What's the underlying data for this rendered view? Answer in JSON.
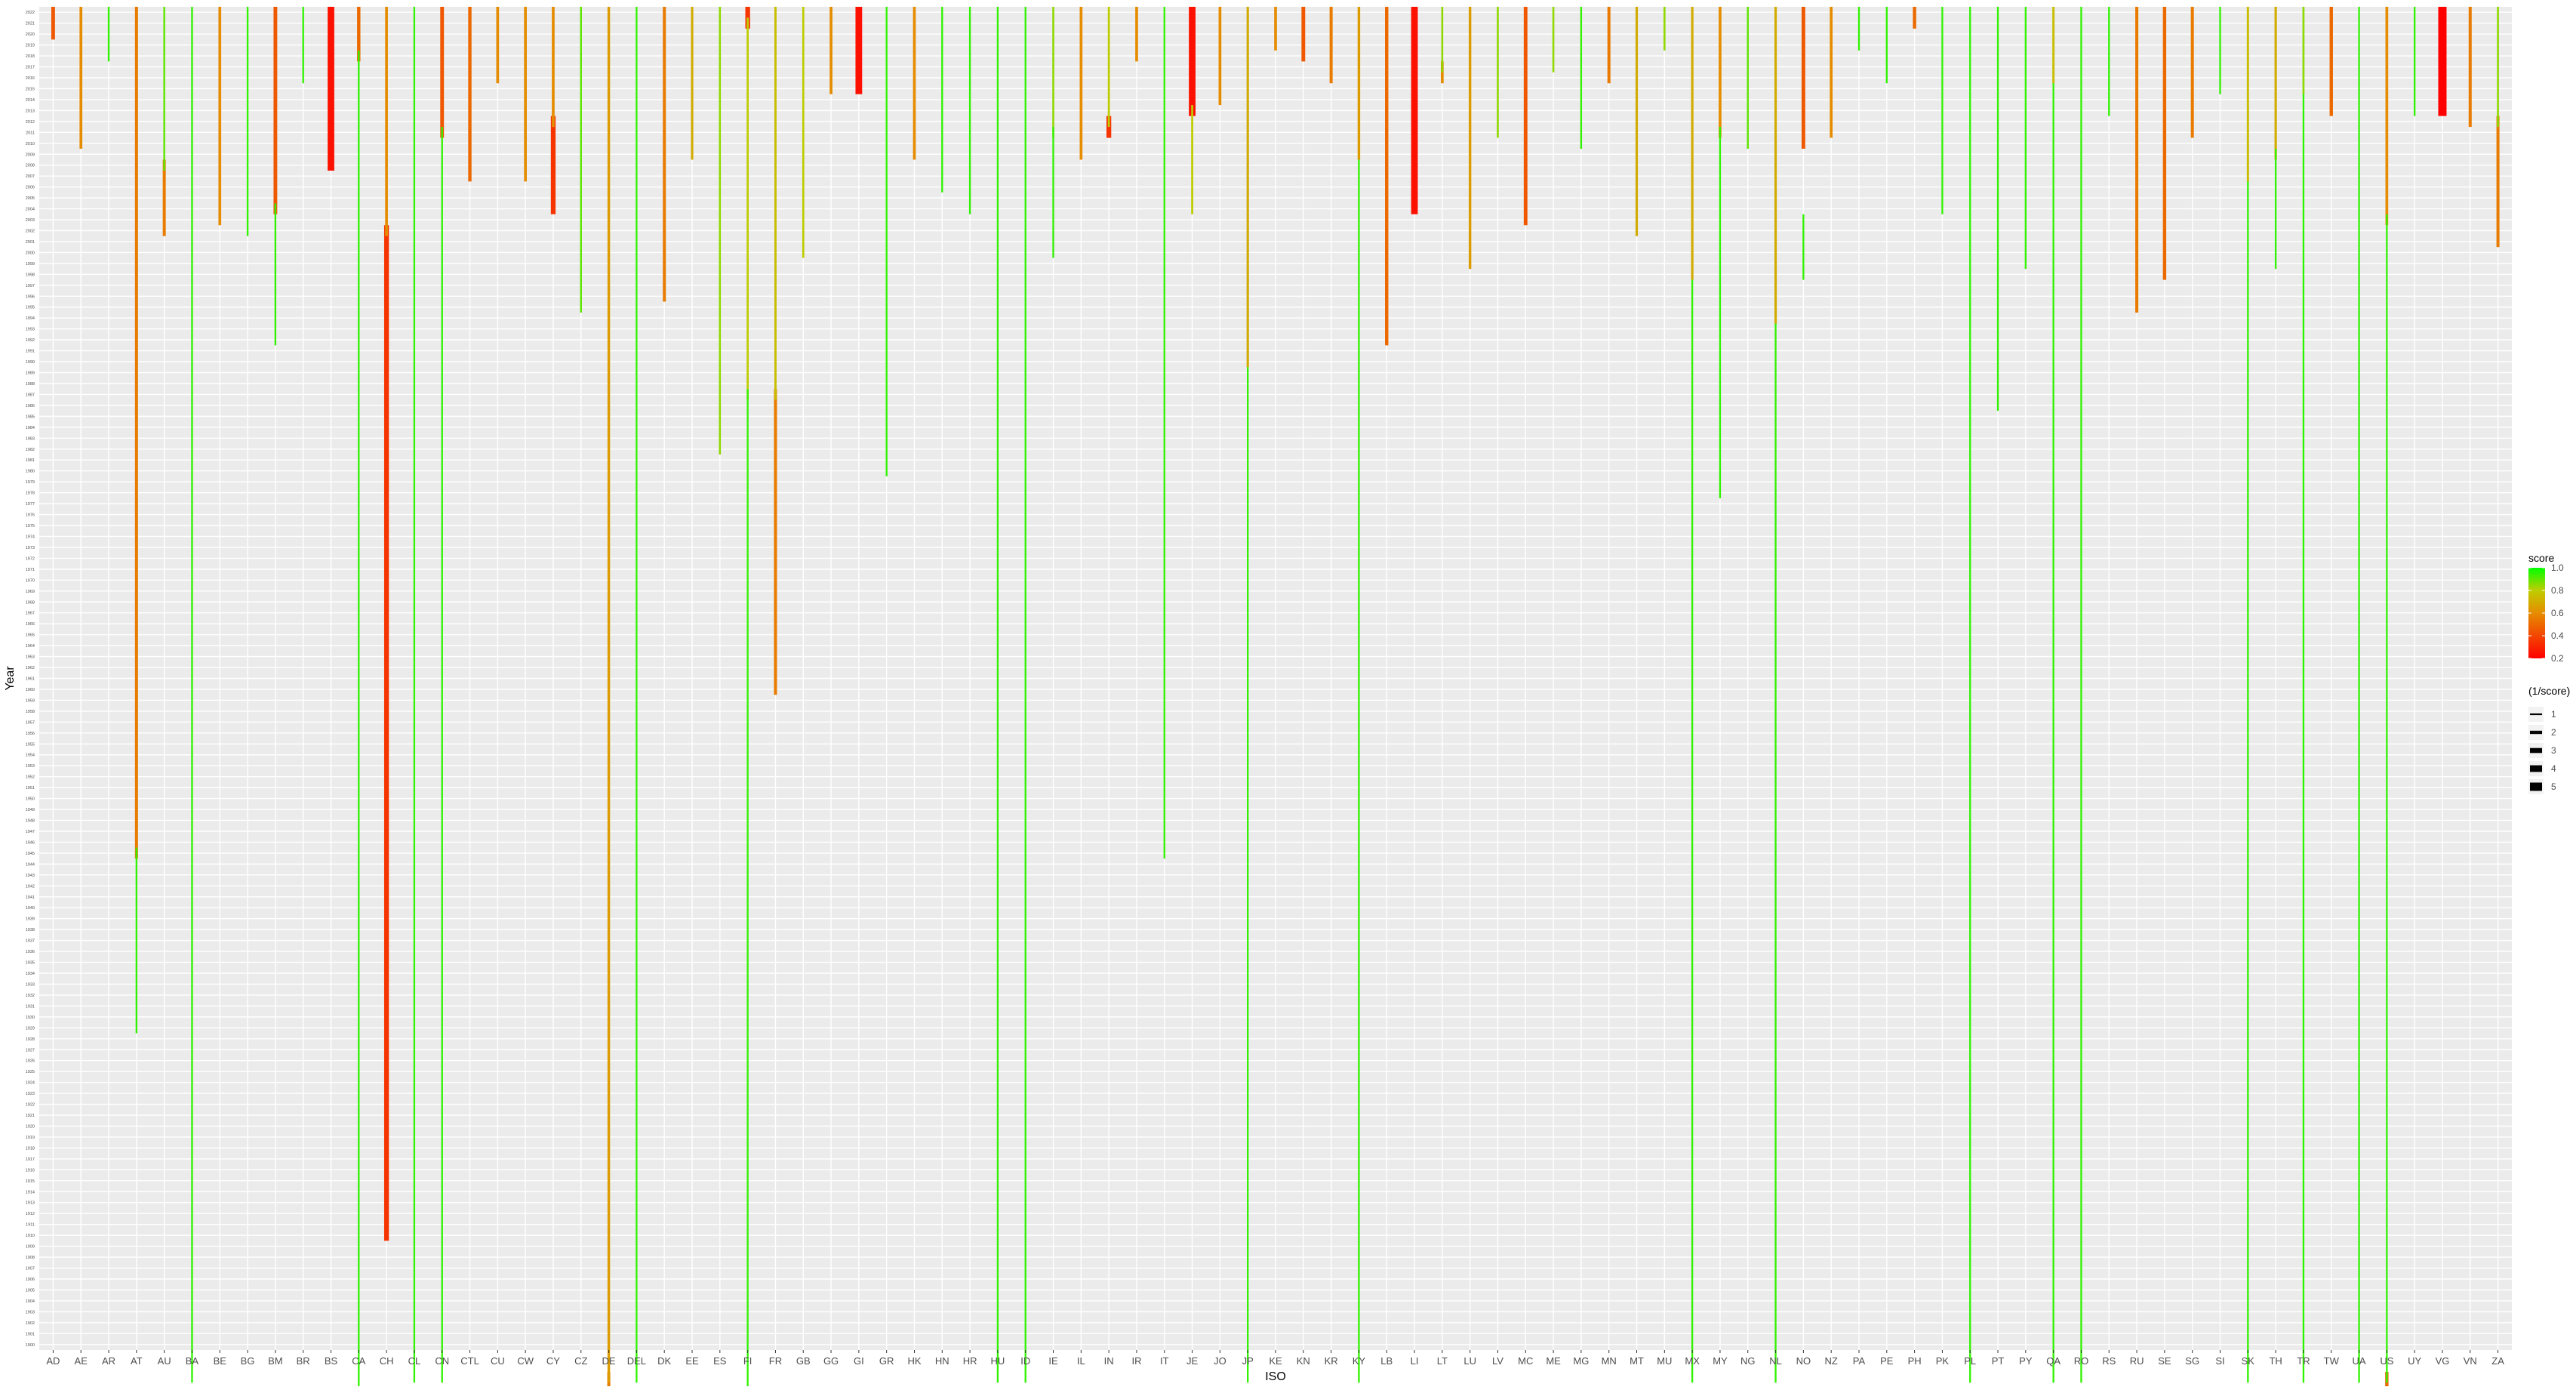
{
  "chart_data": {
    "type": "bar",
    "xlabel": "ISO",
    "ylabel": "Year",
    "ylim": [
      1900,
      2022
    ],
    "y_ticks": [
      1900,
      1901,
      1902,
      1903,
      1904,
      1905,
      1906,
      1907,
      1908,
      1909,
      1910,
      1911,
      1912,
      1913,
      1914,
      1915,
      1916,
      1917,
      1918,
      1919,
      1920,
      1921,
      1922,
      1923,
      1924,
      1925,
      1926,
      1927,
      1928,
      1929,
      1930,
      1931,
      1932,
      1933,
      1934,
      1935,
      1936,
      1937,
      1938,
      1939,
      1940,
      1941,
      1942,
      1943,
      1944,
      1945,
      1946,
      1947,
      1948,
      1949,
      1950,
      1951,
      1952,
      1953,
      1954,
      1955,
      1956,
      1957,
      1958,
      1959,
      1960,
      1961,
      1962,
      1963,
      1964,
      1965,
      1966,
      1967,
      1968,
      1969,
      1970,
      1971,
      1972,
      1973,
      1974,
      1975,
      1976,
      1977,
      1978,
      1979,
      1980,
      1981,
      1982,
      1983,
      1984,
      1985,
      1986,
      1987,
      1988,
      1989,
      1990,
      1991,
      1992,
      1993,
      1994,
      1995,
      1996,
      1997,
      1998,
      1999,
      2000,
      2001,
      2002,
      2003,
      2004,
      2005,
      2006,
      2007,
      2008,
      2009,
      2010,
      2011,
      2012,
      2013,
      2014,
      2015,
      2016,
      2017,
      2018,
      2019,
      2020,
      2021,
      2022
    ],
    "grid": true,
    "legend_position": "right",
    "categories": [
      "AD",
      "AE",
      "AR",
      "AT",
      "AU",
      "BA",
      "BE",
      "BG",
      "BM",
      "BR",
      "BS",
      "CA",
      "CH",
      "CL",
      "CN",
      "CTL",
      "CU",
      "CW",
      "CY",
      "CZ",
      "DE",
      "DEL",
      "DK",
      "EE",
      "ES",
      "FI",
      "FR",
      "GB",
      "GG",
      "GI",
      "GR",
      "HK",
      "HN",
      "HR",
      "HU",
      "ID",
      "IE",
      "IL",
      "IN",
      "IR",
      "IT",
      "JE",
      "JO",
      "JP",
      "KE",
      "KN",
      "KR",
      "KY",
      "LB",
      "LI",
      "LT",
      "LU",
      "LV",
      "MC",
      "ME",
      "MG",
      "MN",
      "MT",
      "MU",
      "MX",
      "MY",
      "NG",
      "NL",
      "NO",
      "NZ",
      "PA",
      "PE",
      "PH",
      "PK",
      "PL",
      "PT",
      "PY",
      "QA",
      "RO",
      "RS",
      "RU",
      "SE",
      "SG",
      "SI",
      "SK",
      "TH",
      "TR",
      "TW",
      "UA",
      "US",
      "UY",
      "VG",
      "VN",
      "ZA"
    ],
    "segments": {
      "AD": [
        [
          2020,
          2022,
          0.45
        ]
      ],
      "AE": [
        [
          2010,
          2022,
          0.6
        ]
      ],
      "AR": [
        [
          2018,
          2022,
          0.95
        ]
      ],
      "AT": [
        [
          1945,
          2022,
          0.55
        ],
        [
          1929,
          1945,
          0.95
        ]
      ],
      "AU": [
        [
          2002,
          2008,
          0.55
        ],
        [
          2008,
          2022,
          0.9
        ]
      ],
      "BA": [
        [
          1897,
          2022,
          0.95
        ]
      ],
      "BE": [
        [
          2003,
          2022,
          0.6
        ]
      ],
      "BG": [
        [
          2002,
          2022,
          0.95
        ]
      ],
      "BM": [
        [
          2004,
          2022,
          0.45
        ],
        [
          1992,
          2004,
          0.95
        ]
      ],
      "BR": [
        [
          2016,
          2022,
          0.95
        ]
      ],
      "BS": [
        [
          2008,
          2022,
          0.25
        ]
      ],
      "CA": [
        [
          2018,
          2022,
          0.5
        ],
        [
          1872,
          2018,
          0.95
        ]
      ],
      "CH": [
        [
          1910,
          2002,
          0.35
        ],
        [
          2002,
          2022,
          0.6
        ]
      ],
      "CL": [
        [
          1897,
          2022,
          0.95
        ]
      ],
      "CN": [
        [
          2011,
          2022,
          0.45
        ],
        [
          1897,
          2011,
          0.95
        ]
      ],
      "CTL": [
        [
          2007,
          2022,
          0.5
        ]
      ],
      "CU": [
        [
          2016,
          2022,
          0.6
        ]
      ],
      "CW": [
        [
          2007,
          2022,
          0.6
        ]
      ],
      "CY": [
        [
          2004,
          2012,
          0.35
        ],
        [
          2012,
          2022,
          0.6
        ]
      ],
      "CZ": [
        [
          1995,
          2022,
          0.9
        ]
      ],
      "DE": [
        [
          1872,
          1897,
          0.55
        ],
        [
          1897,
          2022,
          0.65
        ]
      ],
      "DEL": [
        [
          1897,
          2022,
          0.95
        ]
      ],
      "DK": [
        [
          1996,
          2022,
          0.55
        ]
      ],
      "EE": [
        [
          2009,
          2022,
          0.7
        ]
      ],
      "ES": [
        [
          1982,
          2022,
          0.85
        ]
      ],
      "FI": [
        [
          2021,
          2022,
          0.35
        ],
        [
          1987,
          2021,
          0.8
        ],
        [
          1872,
          1987,
          0.95
        ]
      ],
      "FR": [
        [
          1960,
          1987,
          0.55
        ],
        [
          1987,
          2022,
          0.75
        ]
      ],
      "GB": [
        [
          2000,
          2022,
          0.8
        ]
      ],
      "GG": [
        [
          2015,
          2022,
          0.6
        ]
      ],
      "GI": [
        [
          2015,
          2022,
          0.25
        ]
      ],
      "GR": [
        [
          1980,
          2022,
          0.95
        ]
      ],
      "HK": [
        [
          2009,
          2022,
          0.6
        ]
      ],
      "HN": [
        [
          2006,
          2022,
          0.95
        ]
      ],
      "HR": [
        [
          2004,
          2022,
          0.95
        ]
      ],
      "HU": [
        [
          1897,
          2022,
          0.95
        ]
      ],
      "ID": [
        [
          1897,
          2022,
          0.95
        ]
      ],
      "IE": [
        [
          2011,
          2022,
          0.85
        ],
        [
          2000,
          2011,
          0.95
        ]
      ],
      "IL": [
        [
          2009,
          2022,
          0.6
        ]
      ],
      "IN": [
        [
          2011,
          2012,
          0.35
        ],
        [
          2012,
          2022,
          0.8
        ]
      ],
      "IR": [
        [
          2018,
          2022,
          0.6
        ]
      ],
      "IT": [
        [
          1945,
          2022,
          0.95
        ]
      ],
      "JE": [
        [
          2013,
          2022,
          0.25
        ],
        [
          2004,
          2013,
          0.8
        ]
      ],
      "JO": [
        [
          2014,
          2022,
          0.6
        ]
      ],
      "JP": [
        [
          1897,
          2022,
          0.95
        ],
        [
          1990,
          2022,
          0.7
        ]
      ],
      "KE": [
        [
          2019,
          2022,
          0.6
        ]
      ],
      "KN": [
        [
          2018,
          2022,
          0.45
        ]
      ],
      "KR": [
        [
          2016,
          2022,
          0.55
        ]
      ],
      "KY": [
        [
          1897,
          2022,
          0.95
        ],
        [
          2009,
          2022,
          0.65
        ]
      ],
      "LB": [
        [
          1992,
          2022,
          0.5
        ]
      ],
      "LI": [
        [
          2004,
          2022,
          0.25
        ]
      ],
      "LT": [
        [
          2016,
          2017,
          0.6
        ],
        [
          2017,
          2022,
          0.85
        ]
      ],
      "LU": [
        [
          1999,
          2022,
          0.65
        ]
      ],
      "LV": [
        [
          2011,
          2022,
          0.85
        ]
      ],
      "MC": [
        [
          2003,
          2022,
          0.45
        ]
      ],
      "ME": [
        [
          2017,
          2022,
          0.85
        ]
      ],
      "MG": [
        [
          2010,
          2022,
          0.95
        ]
      ],
      "MN": [
        [
          2016,
          2022,
          0.55
        ]
      ],
      "MT": [
        [
          2002,
          2022,
          0.7
        ]
      ],
      "MU": [
        [
          2019,
          2022,
          0.85
        ]
      ],
      "MX": [
        [
          1897,
          2022,
          0.95
        ],
        [
          1998,
          2022,
          0.7
        ]
      ],
      "MY": [
        [
          2011,
          2022,
          0.6
        ],
        [
          1978,
          2011,
          0.95
        ]
      ],
      "NG": [
        [
          2010,
          2022,
          0.9
        ]
      ],
      "NL": [
        [
          1897,
          2022,
          0.95
        ],
        [
          1994,
          2022,
          0.7
        ]
      ],
      "NO": [
        [
          2010,
          2022,
          0.45
        ],
        [
          1998,
          2003,
          0.95
        ]
      ],
      "NZ": [
        [
          2011,
          2022,
          0.6
        ]
      ],
      "PA": [
        [
          2019,
          2022,
          0.95
        ]
      ],
      "PE": [
        [
          2016,
          2022,
          0.95
        ]
      ],
      "PH": [
        [
          2021,
          2022,
          0.5
        ]
      ],
      "PK": [
        [
          2004,
          2022,
          0.95
        ]
      ],
      "PL": [
        [
          1897,
          2022,
          0.95
        ]
      ],
      "PT": [
        [
          1986,
          2022,
          0.95
        ]
      ],
      "PY": [
        [
          1999,
          2022,
          0.95
        ]
      ],
      "QA": [
        [
          1897,
          2022,
          0.95
        ],
        [
          2016,
          2022,
          0.75
        ]
      ],
      "RO": [
        [
          1897,
          2022,
          0.95
        ]
      ],
      "RS": [
        [
          2013,
          2022,
          0.95
        ]
      ],
      "RU": [
        [
          1995,
          2022,
          0.55
        ]
      ],
      "SE": [
        [
          1998,
          2022,
          0.5
        ]
      ],
      "SG": [
        [
          2011,
          2022,
          0.55
        ]
      ],
      "SI": [
        [
          2015,
          2022,
          0.95
        ]
      ],
      "SK": [
        [
          1897,
          2022,
          0.95
        ],
        [
          2007,
          2022,
          0.75
        ]
      ],
      "TH": [
        [
          2009,
          2022,
          0.7
        ],
        [
          1999,
          2009,
          0.95
        ]
      ],
      "TR": [
        [
          1897,
          2022,
          0.95
        ],
        [
          2015,
          2022,
          0.85
        ]
      ],
      "TW": [
        [
          2013,
          2022,
          0.5
        ]
      ],
      "UA": [
        [
          1897,
          2022,
          0.95
        ]
      ],
      "US": [
        [
          1896,
          1897,
          0.5
        ],
        [
          2003,
          2022,
          0.6
        ],
        [
          1897,
          2003,
          0.95
        ]
      ],
      "UY": [
        [
          2013,
          2022,
          0.95
        ]
      ],
      "VG": [
        [
          2013,
          2022,
          0.2
        ]
      ],
      "VN": [
        [
          2012,
          2022,
          0.55
        ]
      ],
      "ZA": [
        [
          2001,
          2012,
          0.55
        ],
        [
          2012,
          2022,
          0.85
        ]
      ]
    },
    "legend_score": {
      "title": "score",
      "ticks": [
        1.0,
        0.8,
        0.6,
        0.4,
        0.2
      ],
      "colors": [
        "#00ff00",
        "#ff0000"
      ]
    },
    "legend_size": {
      "title": "(1/score)",
      "ticks": [
        1,
        2,
        3,
        4,
        5
      ]
    }
  }
}
